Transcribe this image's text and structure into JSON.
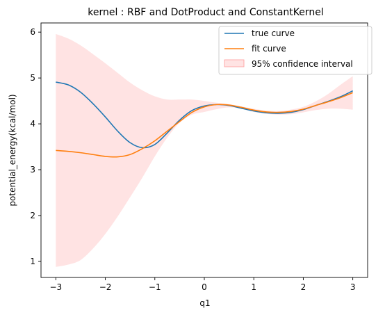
{
  "chart_data": {
    "type": "line",
    "title": "kernel : RBF and DotProduct and ConstantKernel",
    "xlabel": "q1",
    "ylabel": "potential_energy(kcal/mol)",
    "xlim": [
      -3.3,
      3.3
    ],
    "ylim": [
      0.65,
      6.2
    ],
    "xticks": [
      -3,
      -2,
      -1,
      0,
      1,
      2,
      3
    ],
    "yticks": [
      1,
      2,
      3,
      4,
      5,
      6
    ],
    "grid": false,
    "legend_position": "top-right",
    "x": [
      -3.0,
      -2.75,
      -2.5,
      -2.25,
      -2.0,
      -1.75,
      -1.5,
      -1.25,
      -1.0,
      -0.75,
      -0.5,
      -0.25,
      0.0,
      0.25,
      0.5,
      0.75,
      1.0,
      1.25,
      1.5,
      1.75,
      2.0,
      2.25,
      2.5,
      2.75,
      3.0
    ],
    "series": [
      {
        "name": "true curve",
        "color": "#1f77b4",
        "values": [
          4.91,
          4.85,
          4.69,
          4.44,
          4.15,
          3.84,
          3.59,
          3.48,
          3.55,
          3.8,
          4.08,
          4.29,
          4.39,
          4.42,
          4.4,
          4.34,
          4.28,
          4.24,
          4.23,
          4.25,
          4.31,
          4.4,
          4.49,
          4.59,
          4.72
        ]
      },
      {
        "name": "fit curve",
        "color": "#ff7f0e",
        "values": [
          3.42,
          3.4,
          3.37,
          3.33,
          3.29,
          3.28,
          3.33,
          3.46,
          3.63,
          3.84,
          4.05,
          4.25,
          4.37,
          4.42,
          4.41,
          4.36,
          4.3,
          4.26,
          4.25,
          4.27,
          4.32,
          4.4,
          4.48,
          4.57,
          4.68
        ]
      }
    ],
    "band": {
      "name": "95% confidence interval",
      "color": "#ff9999",
      "upper": [
        5.96,
        5.86,
        5.71,
        5.52,
        5.32,
        5.11,
        4.9,
        4.73,
        4.6,
        4.53,
        4.53,
        4.53,
        4.5,
        4.46,
        4.43,
        4.38,
        4.33,
        4.29,
        4.28,
        4.31,
        4.37,
        4.49,
        4.65,
        4.85,
        5.04
      ],
      "lower": [
        0.88,
        0.93,
        1.03,
        1.28,
        1.6,
        1.98,
        2.4,
        2.83,
        3.29,
        3.7,
        4.02,
        4.2,
        4.26,
        4.32,
        4.36,
        4.33,
        4.26,
        4.22,
        4.2,
        4.21,
        4.25,
        4.3,
        4.33,
        4.33,
        4.31
      ]
    }
  }
}
